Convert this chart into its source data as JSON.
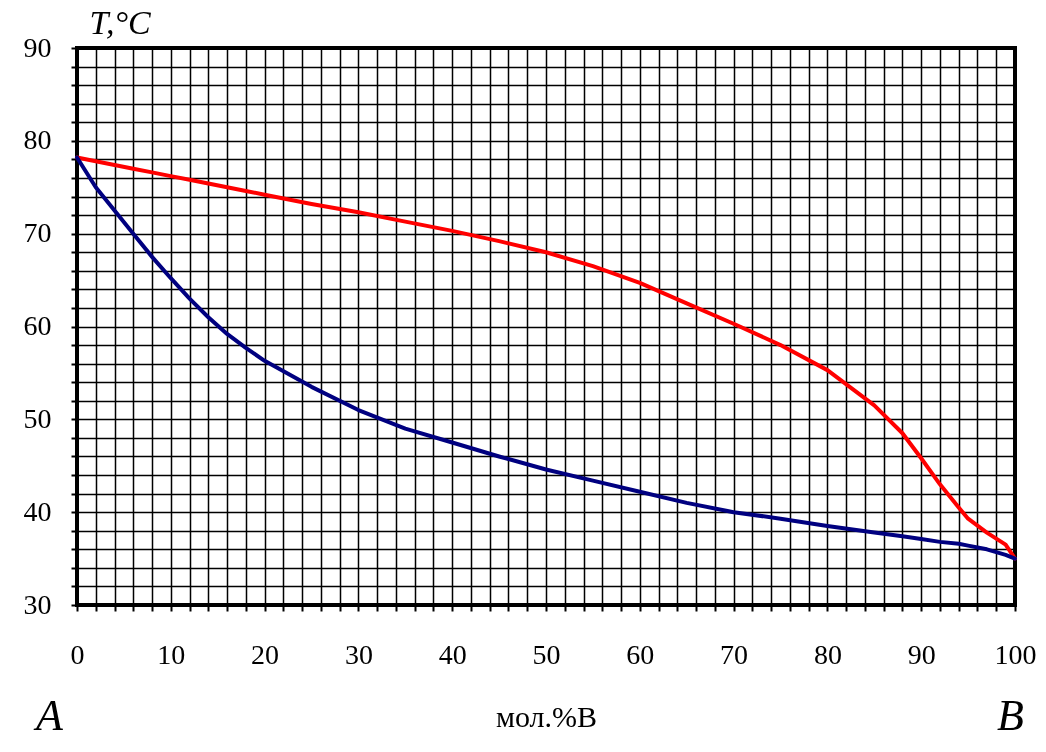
{
  "chart_data": {
    "type": "line",
    "xlabel": "мол.%B",
    "ylabel": "T,°C",
    "x": [
      0,
      2,
      4,
      6,
      8,
      10,
      12,
      14,
      16,
      18,
      20,
      25,
      30,
      35,
      40,
      45,
      50,
      55,
      60,
      65,
      70,
      75,
      80,
      85,
      88,
      90,
      92,
      94,
      95,
      97,
      99,
      100
    ],
    "series": [
      {
        "color": "#ff0000",
        "values": [
          78.2,
          77.8,
          77.4,
          77.0,
          76.6,
          76.2,
          75.8,
          75.4,
          75.0,
          74.6,
          74.2,
          73.2,
          72.3,
          71.3,
          70.3,
          69.2,
          68.0,
          66.5,
          64.7,
          62.5,
          60.3,
          58.0,
          55.3,
          51.5,
          48.5,
          45.8,
          43.0,
          40.5,
          39.3,
          37.8,
          36.5,
          35.0
        ]
      },
      {
        "color": "#000080",
        "values": [
          78.2,
          75.0,
          72.5,
          70.0,
          67.5,
          65.2,
          63.0,
          61.0,
          59.2,
          57.7,
          56.3,
          53.5,
          51.0,
          49.0,
          47.5,
          46.0,
          44.6,
          43.4,
          42.2,
          41.0,
          40.0,
          39.3,
          38.5,
          37.8,
          37.4,
          37.1,
          36.8,
          36.6,
          36.4,
          36.0,
          35.4,
          35.0
        ]
      }
    ],
    "xlim": [
      0,
      100
    ],
    "xticks": [
      0,
      10,
      20,
      30,
      40,
      50,
      60,
      70,
      80,
      90,
      100
    ],
    "ylim": [
      30,
      90
    ],
    "yticks": [
      30,
      40,
      50,
      60,
      70,
      80,
      90
    ],
    "grid": true,
    "marker": "none",
    "line_style": "solid",
    "annotations": [
      "A",
      "B"
    ]
  }
}
